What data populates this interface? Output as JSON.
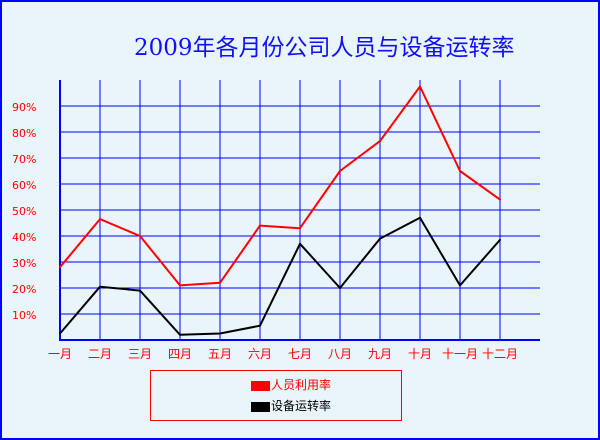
{
  "chart_data": {
    "type": "line",
    "title": "2009年各月份公司人员与设备运转率",
    "categories": [
      "一月",
      "二月",
      "三月",
      "四月",
      "五月",
      "六月",
      "七月",
      "八月",
      "九月",
      "十月",
      "十一月",
      "十二月"
    ],
    "y_ticks": [
      "10%",
      "20%",
      "30%",
      "40%",
      "50%",
      "60%",
      "70%",
      "80%",
      "90%"
    ],
    "ylim": [
      0,
      100
    ],
    "y_unit": "%",
    "grid": true,
    "legend_placement": "bottom",
    "series": [
      {
        "name": "人员利用率",
        "color": "#ff0000",
        "values": [
          28,
          46.5,
          40,
          21,
          22,
          44,
          43,
          65,
          76.5,
          97.5,
          65,
          54
        ]
      },
      {
        "name": "设备运转率",
        "color": "#000000",
        "values": [
          2.5,
          20.5,
          19,
          2,
          2.5,
          5.5,
          37,
          20,
          39,
          47,
          21,
          38.5
        ]
      }
    ],
    "colors": {
      "grid": "#0000ff",
      "tick_labels": "#ff0000",
      "title": "#1010ff",
      "legend_border": "#ff0000",
      "background": "#e9f4fb"
    }
  }
}
